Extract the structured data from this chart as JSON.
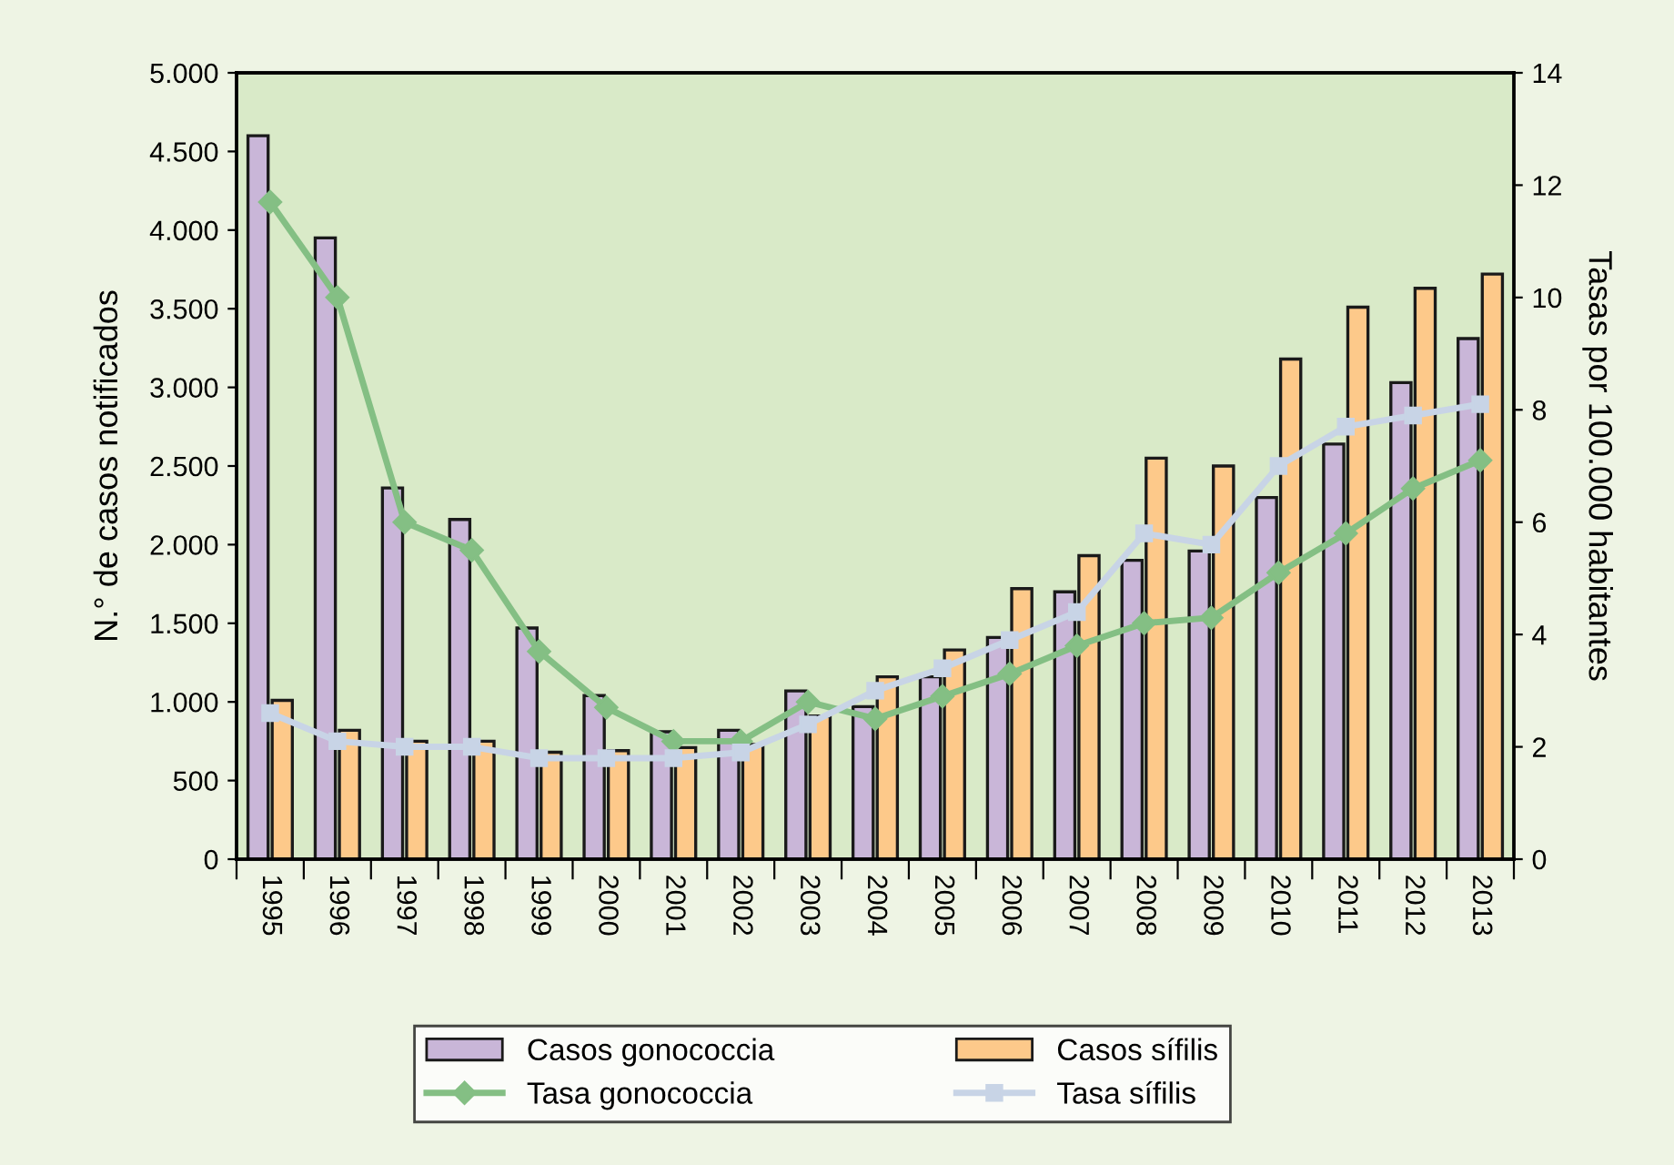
{
  "chart_data": {
    "type": "bar",
    "ylabel": "N.° de casos notificados",
    "y2label": "Tasas por 100.000 habitantes",
    "categories": [
      "1995",
      "1996",
      "1997",
      "1998",
      "1999",
      "2000",
      "2001",
      "2002",
      "2003",
      "2004",
      "2005",
      "2006",
      "2007",
      "2008",
      "2009",
      "2010",
      "2011",
      "2012",
      "2013"
    ],
    "series": [
      {
        "name": "Casos gonococcia",
        "color": "#c9b6d8",
        "values": [
          4600,
          3950,
          2360,
          2160,
          1470,
          1040,
          810,
          820,
          1070,
          970,
          1160,
          1410,
          1700,
          1900,
          1960,
          2300,
          2640,
          3030,
          3310
        ]
      },
      {
        "name": "Casos sífilis",
        "color": "#fdc98a",
        "values": [
          1010,
          820,
          750,
          750,
          680,
          690,
          710,
          730,
          910,
          1160,
          1330,
          1720,
          1930,
          2550,
          2500,
          3180,
          3510,
          3630,
          3720
        ]
      },
      {
        "name": "Tasa gonococcia",
        "type": "line",
        "axis": "y2",
        "marker": "diamond",
        "color": "#84bf84",
        "values": [
          11.7,
          10.0,
          6.0,
          5.5,
          3.7,
          2.7,
          2.1,
          2.1,
          2.8,
          2.5,
          2.9,
          3.3,
          3.8,
          4.2,
          4.3,
          5.1,
          5.8,
          6.6,
          7.1
        ]
      },
      {
        "name": "Tasa sífilis",
        "type": "line",
        "axis": "y2",
        "marker": "square",
        "color": "#c8d4e6",
        "values": [
          2.6,
          2.1,
          2.0,
          2.0,
          1.8,
          1.8,
          1.8,
          1.9,
          2.4,
          3.0,
          3.4,
          3.9,
          4.4,
          5.8,
          5.6,
          7.0,
          7.7,
          7.9,
          8.1
        ]
      }
    ],
    "ylim": [
      0,
      5000
    ],
    "yticks": [
      0,
      {
        "value": 500,
        "label": "500"
      },
      {
        "value": 1000,
        "label": "1.000"
      },
      {
        "value": 1500,
        "label": "1.500"
      },
      {
        "value": 2000,
        "label": "2.000"
      },
      {
        "value": 2500,
        "label": "2.500"
      },
      {
        "value": 3000,
        "label": "3.000"
      },
      {
        "value": 3500,
        "label": "3.500"
      },
      {
        "value": 4000,
        "label": "4.000"
      },
      {
        "value": 4500,
        "label": "4.500"
      },
      {
        "value": 5000,
        "label": "5.000"
      }
    ],
    "y2lim": [
      0,
      14
    ],
    "y2ticks": [
      0,
      2,
      4,
      6,
      8,
      10,
      12,
      14
    ],
    "legend": "bottom",
    "grid": false
  }
}
